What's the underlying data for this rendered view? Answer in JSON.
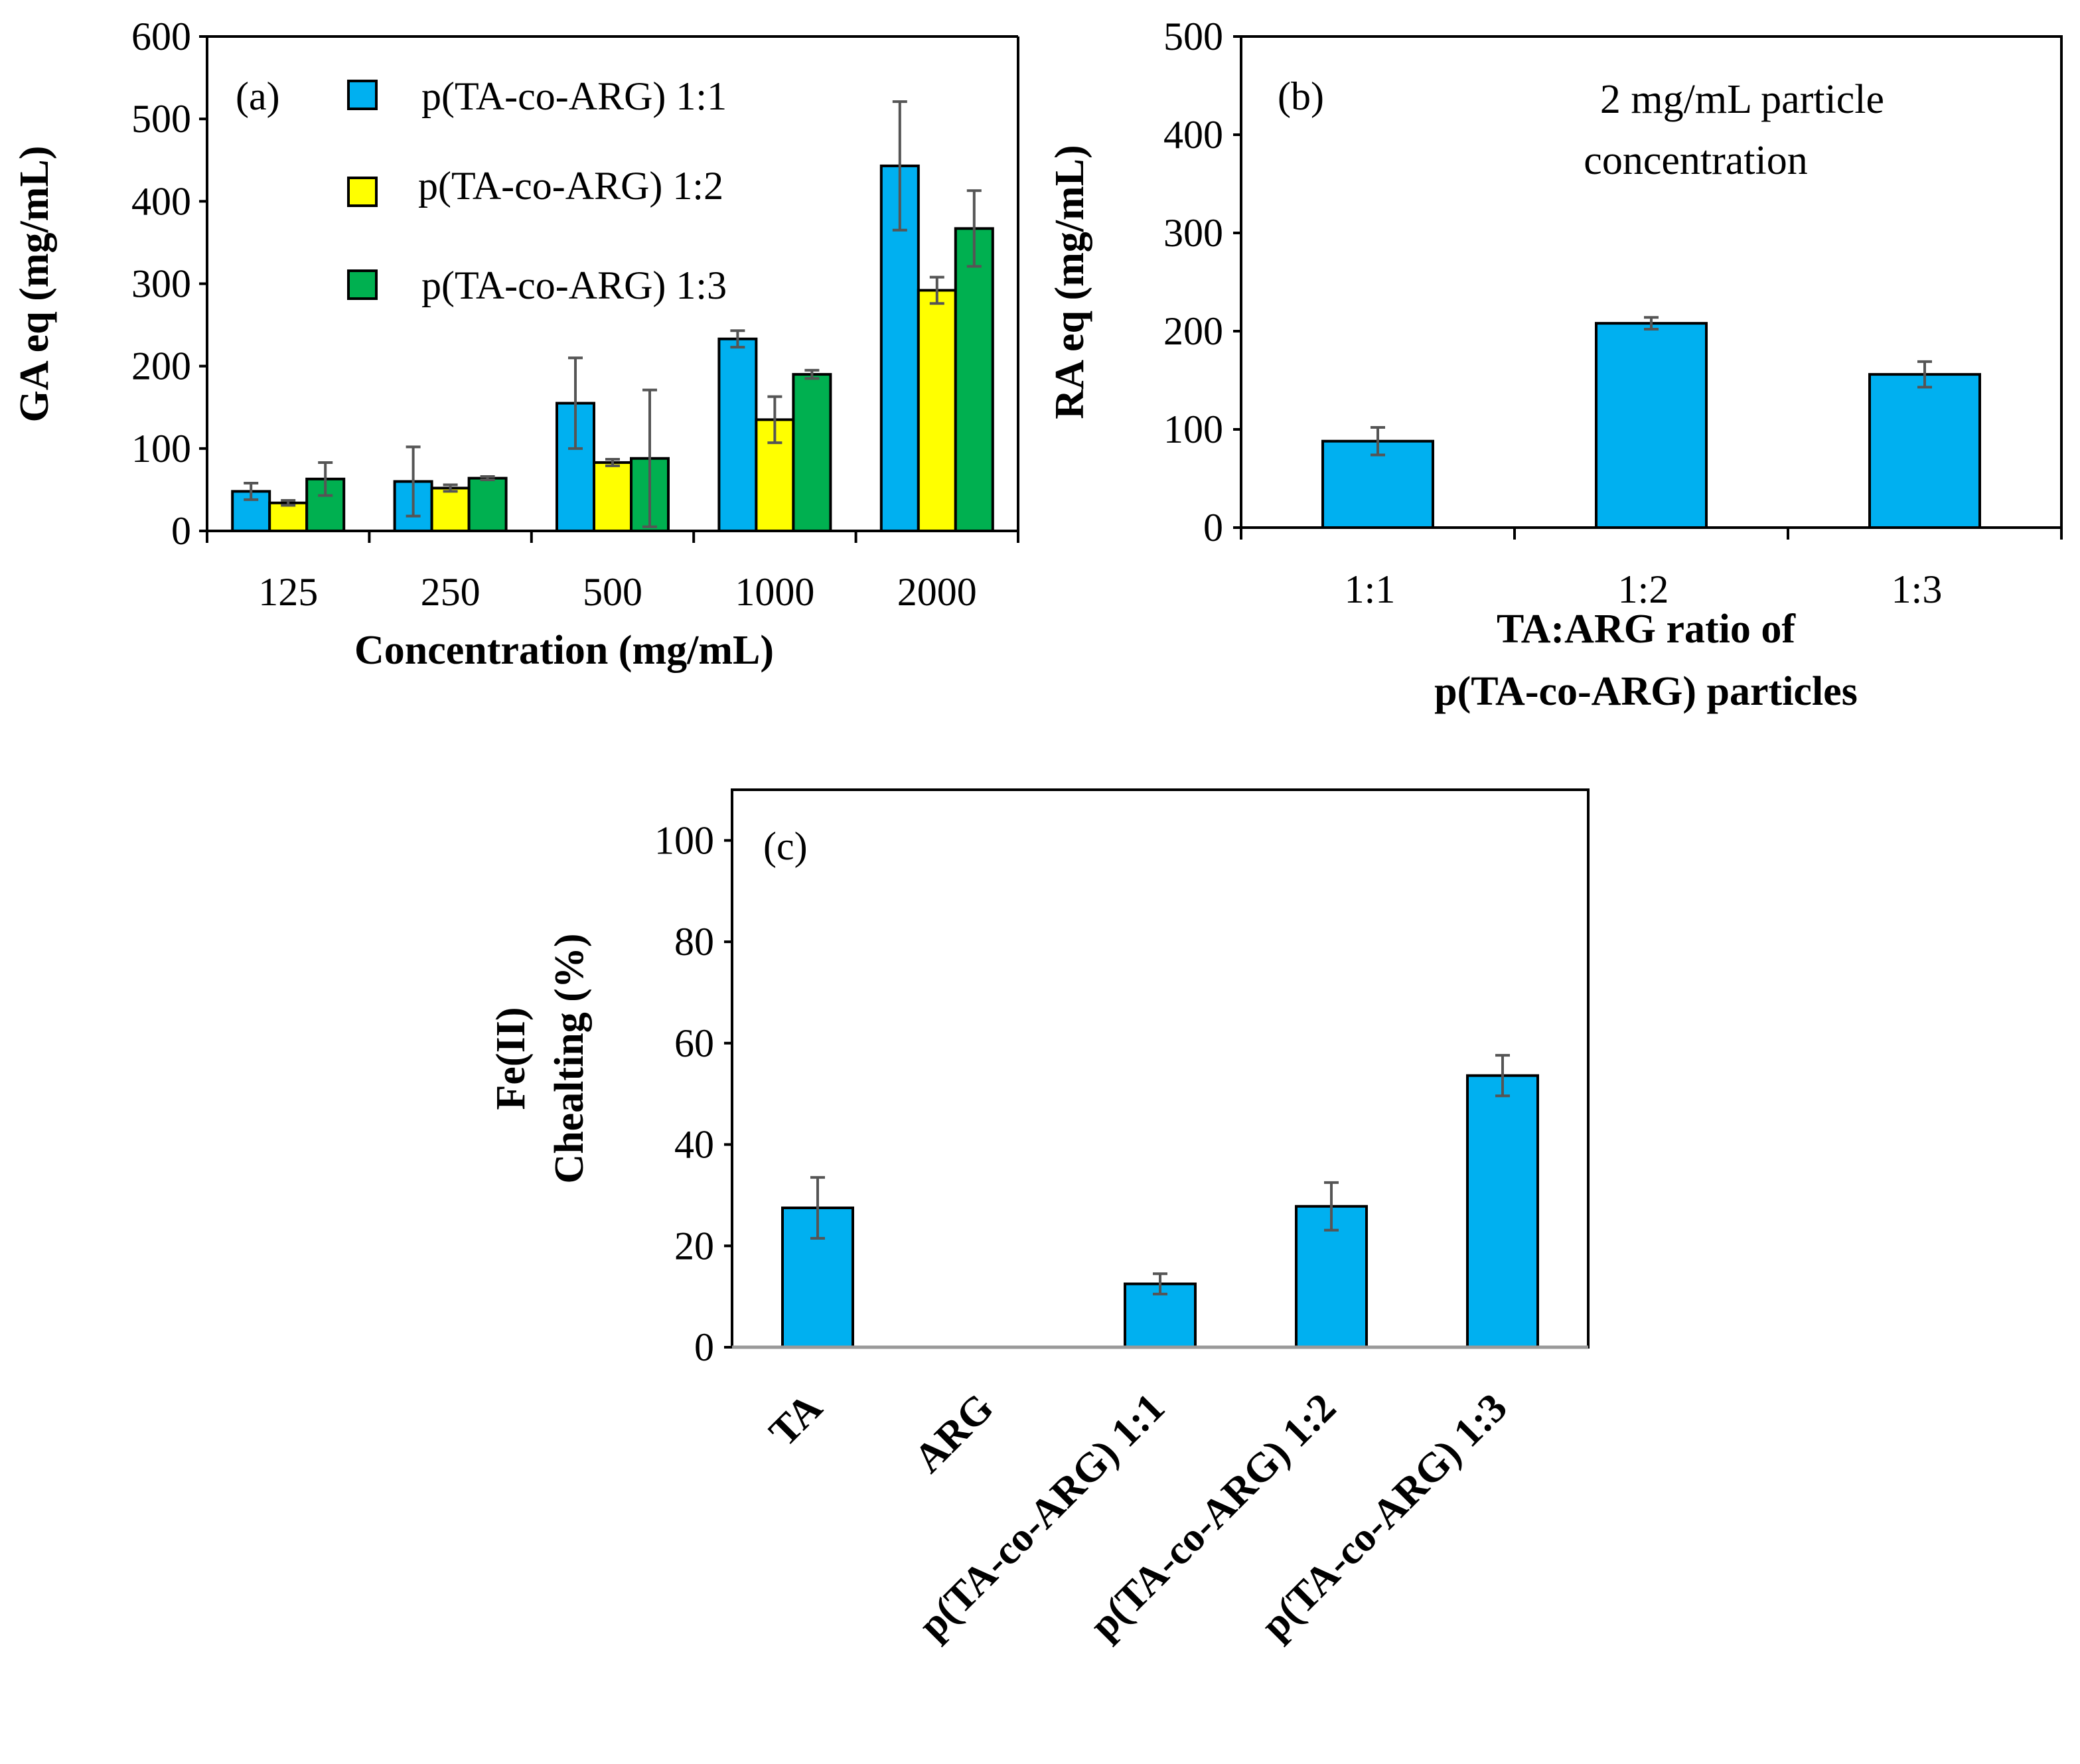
{
  "colors": {
    "series1": "#00B0F0",
    "series2": "#FFFF00",
    "series3": "#00B050",
    "errorbar": "#555555",
    "axis": "#000000"
  },
  "chart_data": [
    {
      "id": "a",
      "type": "bar",
      "panel_label": "(a)",
      "categories": [
        "125",
        "250",
        "500",
        "1000",
        "2000"
      ],
      "series": [
        {
          "name": "p(TA-co-ARG) 1:1",
          "values": [
            48,
            60,
            155,
            233,
            443
          ],
          "errors": [
            10,
            42,
            55,
            10,
            78
          ]
        },
        {
          "name": "p(TA-co-ARG) 1:2",
          "values": [
            34,
            52,
            83,
            135,
            292
          ],
          "errors": [
            3,
            4,
            4,
            28,
            16
          ]
        },
        {
          "name": "p(TA-co-ARG) 1:3",
          "values": [
            63,
            64,
            88,
            190,
            367
          ],
          "errors": [
            20,
            2,
            83,
            5,
            46
          ]
        }
      ],
      "xlabel": "Concentration (mg/mL)",
      "ylabel": "GA eq (mg/mL)",
      "ylim": [
        0,
        600
      ],
      "yticks": [
        "0",
        "100",
        "200",
        "300",
        "400",
        "500",
        "600"
      ],
      "legend": "top-left inside",
      "grid": false
    },
    {
      "id": "b",
      "type": "bar",
      "panel_label": "(b)",
      "annotation": [
        "2 mg/mL particle",
        "concentration"
      ],
      "categories": [
        "1:1",
        "1:2",
        "1:3"
      ],
      "series": [
        {
          "name": "RA eq",
          "values": [
            88,
            208,
            156
          ],
          "errors": [
            14,
            6,
            13
          ]
        }
      ],
      "xlabel": [
        "TA:ARG ratio of",
        "p(TA-co-ARG) particles"
      ],
      "ylabel": "RA eq (mg/mL)",
      "ylim": [
        0,
        500
      ],
      "yticks": [
        "0",
        "100",
        "200",
        "300",
        "400",
        "500"
      ],
      "grid": false
    },
    {
      "id": "c",
      "type": "bar",
      "panel_label": "(c)",
      "categories": [
        "TA",
        "ARG",
        "p(TA-co-ARG) 1:1",
        "p(TA-co-ARG) 1:2",
        "p(TA-co-ARG) 1:3"
      ],
      "series": [
        {
          "name": "Fe(II) Chelating",
          "values": [
            27.5,
            0,
            12.5,
            27.8,
            53.6
          ],
          "errors": [
            6,
            0,
            2,
            4.7,
            4
          ]
        }
      ],
      "xlabel": "",
      "ylabel": [
        "Fe(II)",
        "Chealting (%)"
      ],
      "ylim": [
        0,
        110
      ],
      "yticks": [
        "0",
        "20",
        "40",
        "60",
        "80",
        "100"
      ],
      "grid": false
    }
  ]
}
